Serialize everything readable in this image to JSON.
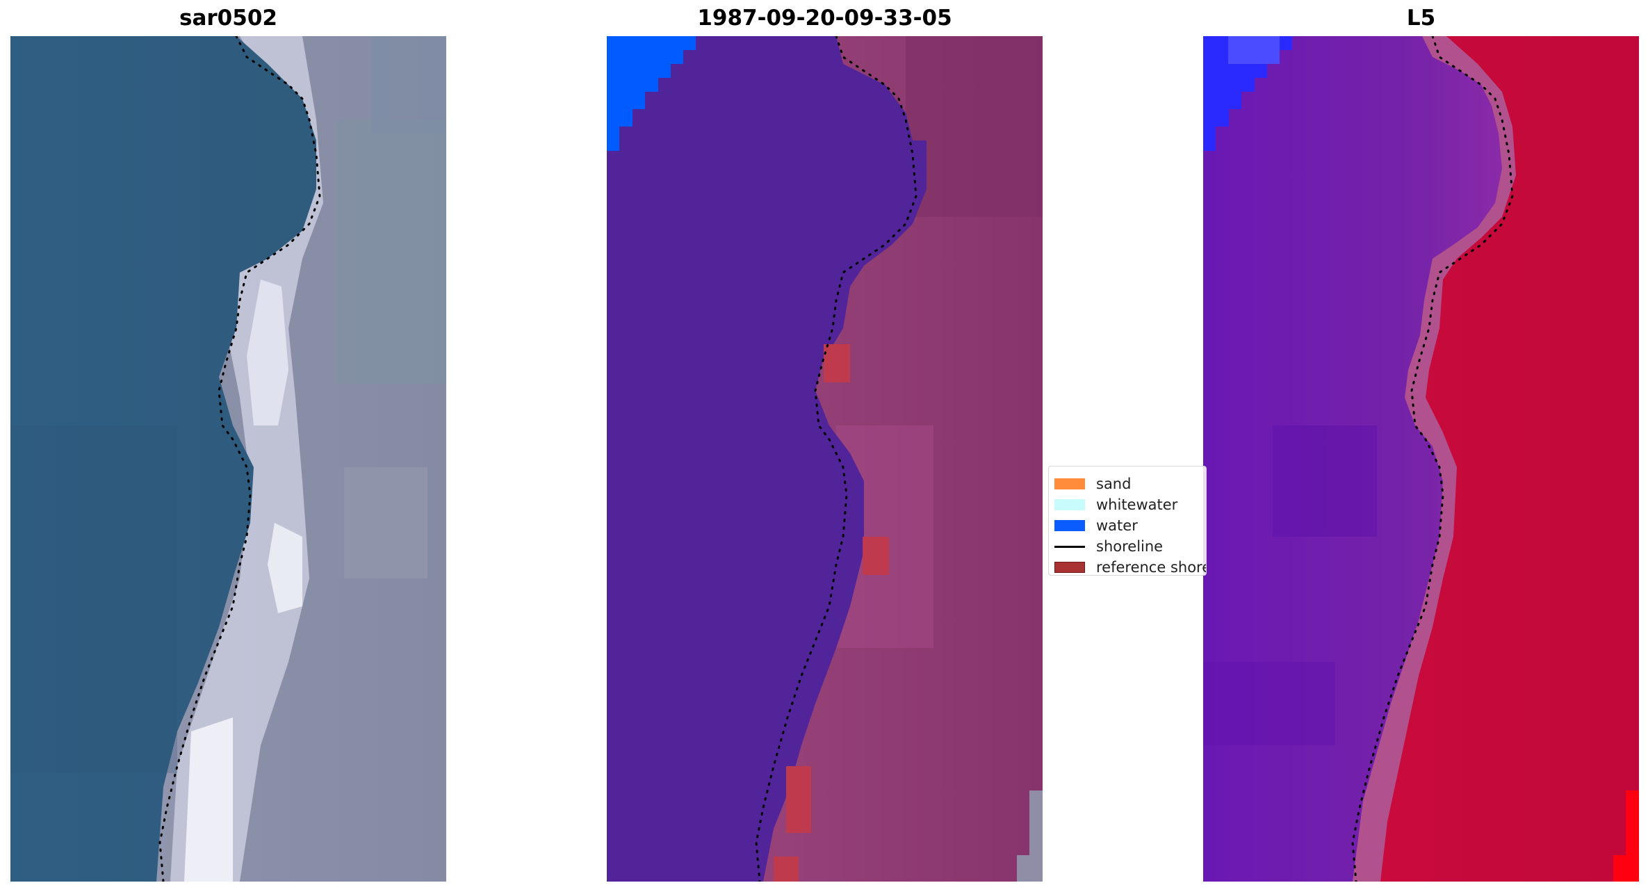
{
  "panels": [
    {
      "id": "rgb",
      "title": "sar0502"
    },
    {
      "id": "classified",
      "title": "1987-09-20-09-33-05"
    },
    {
      "id": "mndwi",
      "title": "L5"
    }
  ],
  "legend": {
    "items": [
      {
        "label": "sand",
        "kind": "patch",
        "color": "#ff8c3a"
      },
      {
        "label": "whitewater",
        "kind": "patch",
        "color": "#c8fcfc"
      },
      {
        "label": "water",
        "kind": "patch",
        "color": "#0a5cff"
      },
      {
        "label": "shoreline",
        "kind": "line",
        "color": "#000000"
      },
      {
        "label": "reference shoreline",
        "kind": "patch",
        "color": "#a83232"
      }
    ]
  },
  "colors": {
    "rgb_water": "#2e5f82",
    "rgb_surf": "#e4e6f2",
    "rgb_land": "#8c93ac",
    "class_water": "#51249a",
    "class_land": "#8f3a74",
    "class_land_light": "#a94e8c",
    "class_blue": "#005cff",
    "class_ref": "#c03a4e",
    "index_water": "#6a16b2",
    "index_land": "#cc0a3c",
    "index_edge": "#b1528f",
    "index_blue": "#2a2aff",
    "index_red": "#ff0010",
    "shoreline_dots": "#000000"
  }
}
